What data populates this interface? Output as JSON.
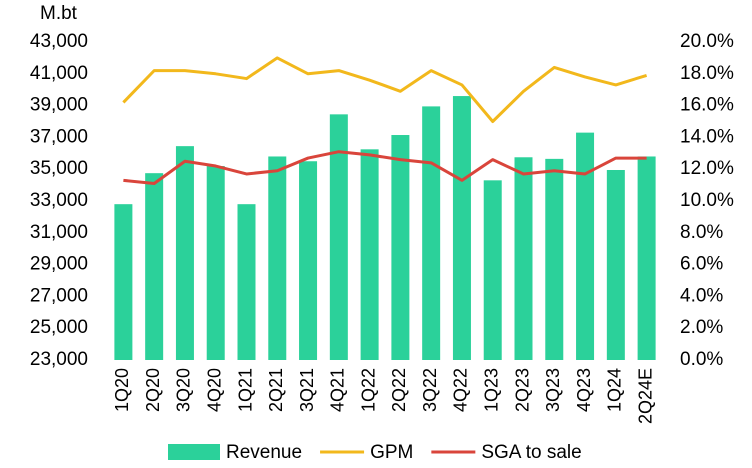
{
  "chart_data": {
    "type": "bar",
    "ylabel": "M.bt",
    "categories": [
      "1Q20",
      "2Q20",
      "3Q20",
      "4Q20",
      "1Q21",
      "2Q21",
      "3Q21",
      "4Q21",
      "1Q22",
      "2Q22",
      "3Q22",
      "4Q22",
      "1Q23",
      "2Q23",
      "3Q23",
      "4Q23",
      "1Q24",
      "2Q24E"
    ],
    "series": [
      {
        "name": "Revenue",
        "type": "bar",
        "color": "#2bd19a",
        "values": [
          32800,
          34750,
          36450,
          35200,
          32800,
          35800,
          35500,
          38450,
          36250,
          37150,
          38950,
          39600,
          34300,
          35750,
          35650,
          37300,
          34950,
          35800
        ]
      },
      {
        "name": "GPM",
        "type": "line",
        "axis": "y2",
        "color": "#f2b81c",
        "values": [
          16.2,
          18.2,
          18.2,
          18.0,
          17.7,
          19.0,
          18.0,
          18.2,
          17.6,
          16.9,
          18.2,
          17.3,
          15.0,
          16.9,
          18.4,
          17.8,
          17.3,
          17.9
        ]
      },
      {
        "name": "SGA to sale",
        "type": "line",
        "axis": "y2",
        "color": "#d9453b",
        "values": [
          11.3,
          11.1,
          12.5,
          12.2,
          11.7,
          11.9,
          12.7,
          13.1,
          12.9,
          12.6,
          12.4,
          11.3,
          12.6,
          11.7,
          11.9,
          11.7,
          12.7,
          12.7
        ]
      }
    ],
    "ylim": [
      23000,
      43000
    ],
    "yticks": [
      {
        "value": 23000,
        "label": "23,000"
      },
      {
        "value": 25000,
        "label": "25,000"
      },
      {
        "value": 27000,
        "label": "27,000"
      },
      {
        "value": 29000,
        "label": "29,000"
      },
      {
        "value": 31000,
        "label": "31,000"
      },
      {
        "value": 33000,
        "label": "33,000"
      },
      {
        "value": 35000,
        "label": "35,000"
      },
      {
        "value": 37000,
        "label": "37,000"
      },
      {
        "value": 39000,
        "label": "39,000"
      },
      {
        "value": 41000,
        "label": "41,000"
      },
      {
        "value": 43000,
        "label": "43,000"
      }
    ],
    "y2lim": [
      0,
      20
    ],
    "y2ticks": [
      {
        "value": 0,
        "label": "0.0%"
      },
      {
        "value": 2,
        "label": "2.0%"
      },
      {
        "value": 4,
        "label": "4.0%"
      },
      {
        "value": 6,
        "label": "6.0%"
      },
      {
        "value": 8,
        "label": "8.0%"
      },
      {
        "value": 10,
        "label": "10.0%"
      },
      {
        "value": 12,
        "label": "12.0%"
      },
      {
        "value": 14,
        "label": "14.0%"
      },
      {
        "value": 16,
        "label": "16.0%"
      },
      {
        "value": 18,
        "label": "18.0%"
      },
      {
        "value": 20,
        "label": "20.0%"
      }
    ],
    "grid": false,
    "legend": "bottom"
  }
}
